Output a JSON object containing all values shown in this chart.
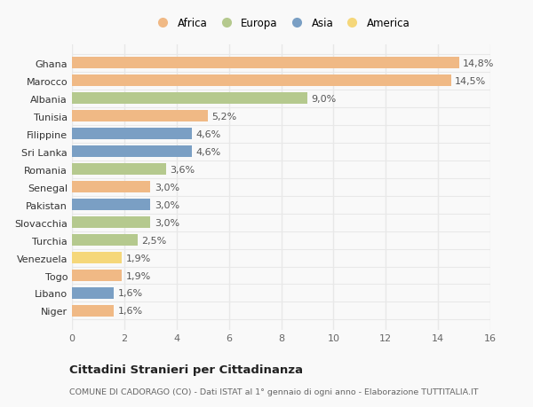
{
  "countries": [
    "Niger",
    "Libano",
    "Togo",
    "Venezuela",
    "Turchia",
    "Slovacchia",
    "Pakistan",
    "Senegal",
    "Romania",
    "Sri Lanka",
    "Filippine",
    "Tunisia",
    "Albania",
    "Marocco",
    "Ghana"
  ],
  "values": [
    1.6,
    1.6,
    1.9,
    1.9,
    2.5,
    3.0,
    3.0,
    3.0,
    3.6,
    4.6,
    4.6,
    5.2,
    9.0,
    14.5,
    14.8
  ],
  "labels": [
    "1,6%",
    "1,6%",
    "1,9%",
    "1,9%",
    "2,5%",
    "3,0%",
    "3,0%",
    "3,0%",
    "3,6%",
    "4,6%",
    "4,6%",
    "5,2%",
    "9,0%",
    "14,5%",
    "14,8%"
  ],
  "continents": [
    "Africa",
    "Asia",
    "Africa",
    "America",
    "Europa",
    "Europa",
    "Asia",
    "Africa",
    "Europa",
    "Asia",
    "Asia",
    "Africa",
    "Europa",
    "Africa",
    "Africa"
  ],
  "continent_colors": {
    "Africa": "#F0B985",
    "Europa": "#B5C98E",
    "Asia": "#7A9FC4",
    "America": "#F5D77A"
  },
  "legend_order": [
    "Africa",
    "Europa",
    "Asia",
    "America"
  ],
  "legend_colors": [
    "#F0B985",
    "#B5C98E",
    "#7A9FC4",
    "#F5D77A"
  ],
  "xlim": [
    0,
    16
  ],
  "xticks": [
    0,
    2,
    4,
    6,
    8,
    10,
    12,
    14,
    16
  ],
  "title": "Cittadini Stranieri per Cittadinanza",
  "subtitle": "COMUNE DI CADORAGO (CO) - Dati ISTAT al 1° gennaio di ogni anno - Elaborazione TUTTITALIA.IT",
  "bg_color": "#f9f9f9",
  "grid_color": "#e8e8e8",
  "bar_height": 0.65,
  "label_fontsize": 8,
  "ytick_fontsize": 8,
  "xtick_fontsize": 8
}
